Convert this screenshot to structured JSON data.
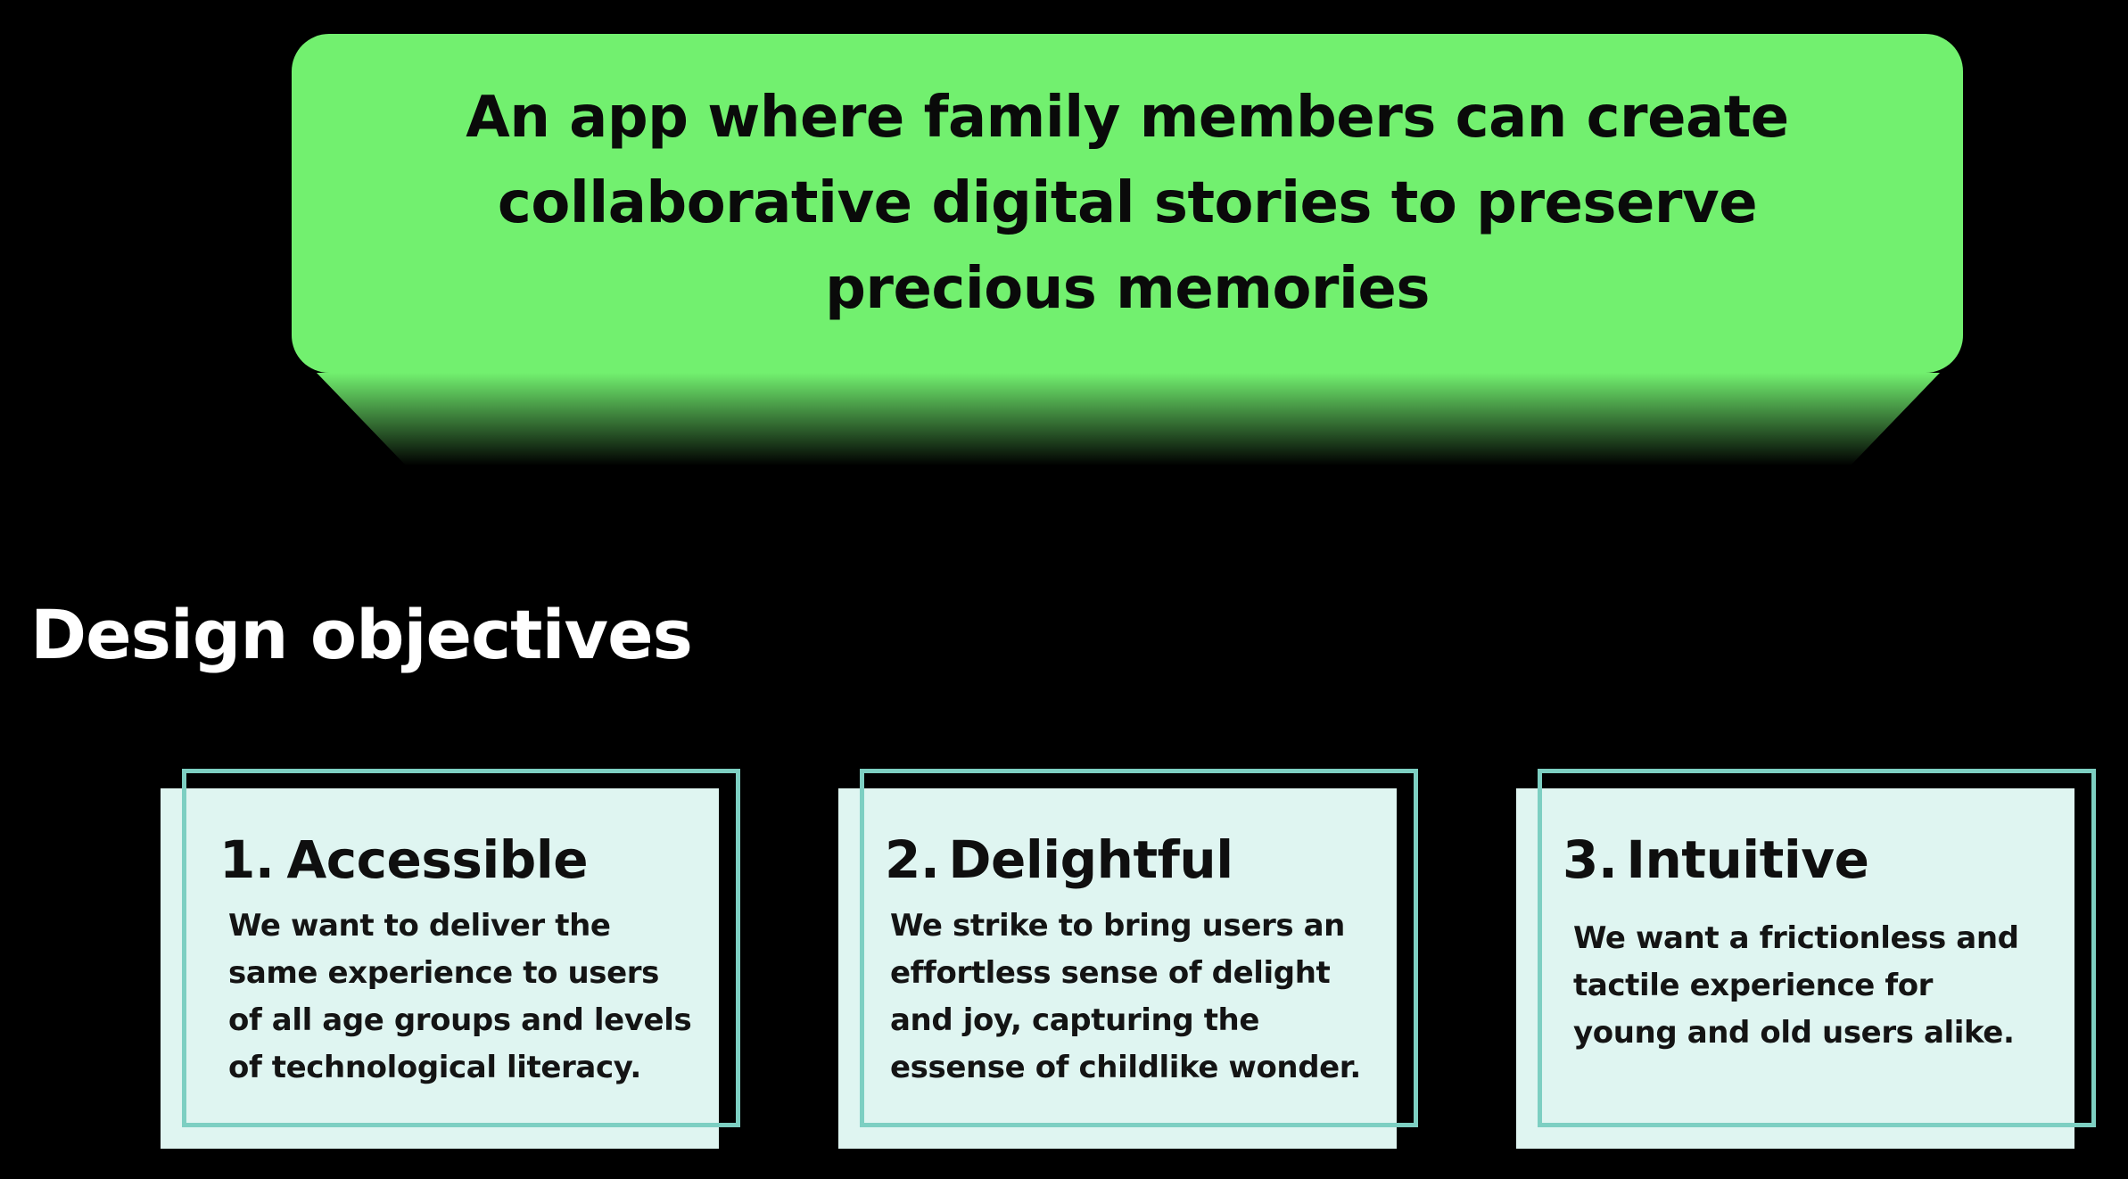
{
  "hero": {
    "text": "An app where family members can create collaborative digital stories to preserve precious memories"
  },
  "section": {
    "title": "Design objectives"
  },
  "objectives": [
    {
      "number": "1.",
      "title": "Accessible",
      "description": "We want to deliver the same experience to users of all age groups and levels of technological literacy."
    },
    {
      "number": "2.",
      "title": "Delightful",
      "description": "We strike to bring users an effortless sense of delight and joy, capturing the essense of childlike wonder."
    },
    {
      "number": "3.",
      "title": "Intuitive",
      "description": "We want a frictionless and tactile experience for young and old users alike."
    }
  ],
  "colors": {
    "background": "#000000",
    "hero_green": "#72f06f",
    "card_fill": "#dff5f1",
    "card_outline": "#7dcfc2",
    "heading_text": "#ffffff"
  }
}
